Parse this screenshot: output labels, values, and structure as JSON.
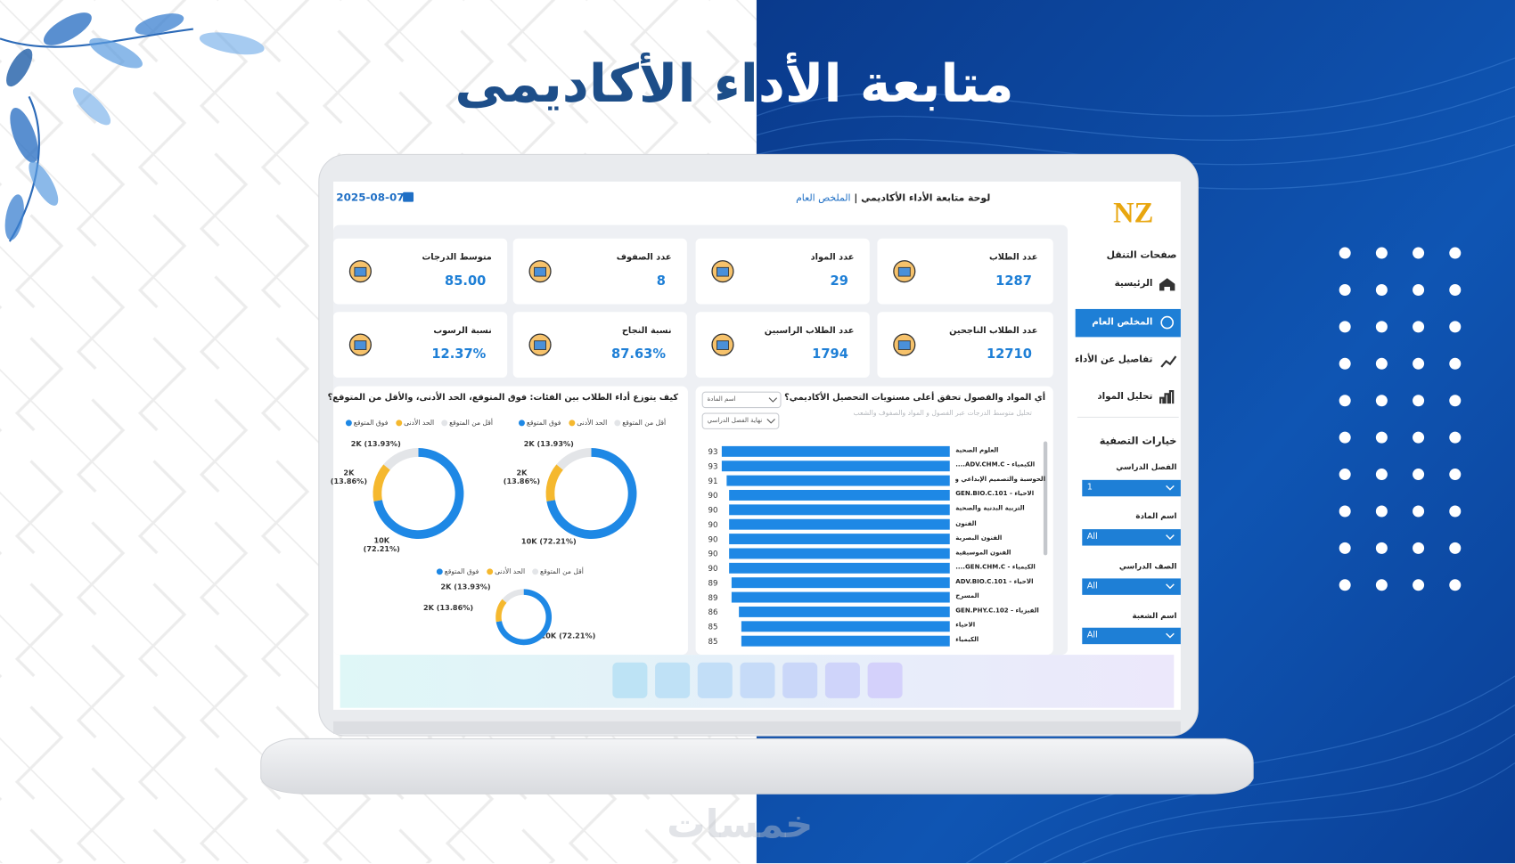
{
  "page": {
    "title": "متابعة الأداء الأكاديمى",
    "watermark": "خمسات"
  },
  "dashboard": {
    "logo": "NZ",
    "header": {
      "title": "لوحة متابعة الأداء الأكاديمي |",
      "page": "الملخص العام",
      "date": "2025-08-07"
    },
    "nav": {
      "title": "صفحات التنقل",
      "items": [
        "الرئيسية",
        "المخلص العام",
        "تفاصيل عن الأداء",
        "تحليل المواد"
      ]
    },
    "filters": {
      "title": "خيارات التصفية",
      "items": [
        {
          "label": "الفصل الدراسي",
          "value": "1"
        },
        {
          "label": "اسم المادة",
          "value": "All"
        },
        {
          "label": "الصف الدراسي",
          "value": "All"
        },
        {
          "label": "اسم الشعبة",
          "value": "All"
        }
      ]
    },
    "kpis": [
      {
        "label": "عدد الطلاب",
        "value": "1287"
      },
      {
        "label": "عدد المواد",
        "value": "29"
      },
      {
        "label": "عدد الصفوف",
        "value": "8"
      },
      {
        "label": "متوسط الدرجات",
        "value": "85.00"
      },
      {
        "label": "عدد الطلاب الناجحين",
        "value": "12710"
      },
      {
        "label": "عدد الطلاب الراسبين",
        "value": "1794"
      },
      {
        "label": "نسبة النجاح",
        "value": "87.63%"
      },
      {
        "label": "نسبة الرسوب",
        "value": "12.37%"
      }
    ],
    "bar_panel": {
      "filters": [
        "اسم المادة",
        "نهاية الفصل الدراسي"
      ]
    },
    "donut_panel": {
      "title": "كيف يتوزع أداء الطلاب بين الفئات: فوق المتوقع، الحد الأدنى، والأقل من المتوقع؟"
    }
  },
  "chart_data": [
    {
      "type": "bar",
      "horizontal": true,
      "title": "أي المواد والفصول تحقق أعلى مستويات التحصيل الأكاديمي؟",
      "subtitle": "تحليل متوسط الدرجات عبر الفصول و المواد والصفوف والشعب",
      "categories": [
        "العلوم الصحية",
        "الكيمياء - ADV.CHM.C....",
        "الحوسبة والتصميم الإبداعي و...",
        "الأحياء - GEN.BIO.C.101",
        "التربية البدنية والصحية",
        "الفنون",
        "الفنون البصرية",
        "الفنون الموسيقية",
        "الكيمياء - GEN.CHM.C....",
        "الأحياء - ADV.BIO.C.101",
        "المسرح",
        "الفيزياء - GEN.PHY.C.102",
        "الأحياء",
        "الكيمياء"
      ],
      "values": [
        93,
        93,
        91,
        90,
        90,
        90,
        90,
        90,
        90,
        89,
        89,
        86,
        85,
        85
      ],
      "color": "#1e88e5",
      "xlim": [
        0,
        93
      ]
    },
    {
      "type": "donut",
      "categories": [
        "فوق المتوقع",
        "الحد الأدنى",
        "أقل من المتوقع"
      ],
      "values": [
        72.21,
        13.86,
        13.93
      ],
      "value_labels": [
        "10K (72.21%)",
        "2K (13.86%)",
        "2K (13.93%)"
      ],
      "colors": [
        "#1e88e5",
        "#f5b82e",
        "#e3e5e8"
      ]
    },
    {
      "type": "donut",
      "categories": [
        "فوق المتوقع",
        "الحد الأدنى",
        "أقل من المتوقع"
      ],
      "values": [
        72.21,
        13.86,
        13.93
      ],
      "value_labels": [
        "10K (72.21%)",
        "2K (13.86%)",
        "2K (13.93%)"
      ],
      "colors": [
        "#1e88e5",
        "#f5b82e",
        "#e3e5e8"
      ]
    },
    {
      "type": "donut",
      "categories": [
        "فوق المتوقع",
        "الحد الأدنى",
        "أقل من المتوقع"
      ],
      "values": [
        72.21,
        13.86,
        13.93
      ],
      "value_labels": [
        "10K (72.21%)",
        "2K (13.86%)",
        "2K (13.93%)"
      ],
      "colors": [
        "#1e88e5",
        "#f5b82e",
        "#e3e5e8"
      ]
    }
  ]
}
